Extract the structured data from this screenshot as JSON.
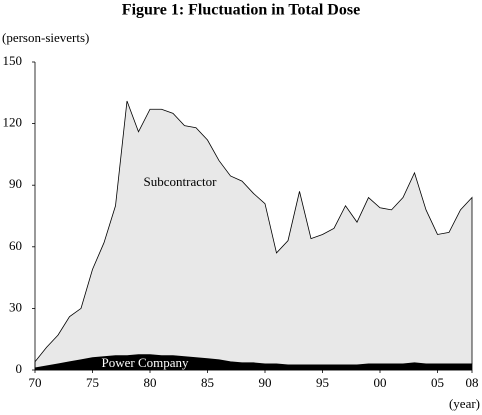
{
  "chart_data": {
    "type": "stacked_area",
    "title": "Figure 1: Fluctuation in Total Dose",
    "y_label": "(person-sieverts)",
    "x_label": "(year)",
    "x": [
      1970,
      1971,
      1972,
      1973,
      1974,
      1975,
      1976,
      1977,
      1978,
      1979,
      1980,
      1981,
      1982,
      1983,
      1984,
      1985,
      1986,
      1987,
      1988,
      1989,
      1990,
      1991,
      1992,
      1993,
      1994,
      1995,
      1996,
      1997,
      1998,
      1999,
      2000,
      2001,
      2002,
      2003,
      2004,
      2005,
      2006,
      2007,
      2008
    ],
    "series": [
      {
        "name": "Power Company",
        "color": "#000000",
        "values": [
          1,
          2,
          3,
          4,
          5,
          6,
          6.5,
          7,
          7,
          7.5,
          7.5,
          7,
          7,
          6.5,
          6,
          5.5,
          5,
          4,
          3.5,
          3.5,
          3,
          3,
          2.5,
          2.5,
          2.5,
          2.5,
          2.5,
          2.5,
          2.5,
          3,
          3,
          3,
          3,
          3.5,
          3,
          3,
          3,
          3,
          3
        ]
      },
      {
        "name": "Subcontractor",
        "color": "#e8e8e8",
        "values": [
          3,
          9,
          14,
          22,
          25,
          43,
          55.5,
          73,
          124,
          108.5,
          119.5,
          120,
          118,
          112.5,
          112,
          106.5,
          97,
          90.5,
          88.5,
          82.5,
          78,
          54,
          60.5,
          84.5,
          61.5,
          63.5,
          66.5,
          77.5,
          69.5,
          81,
          76,
          75,
          81,
          92.5,
          75,
          63,
          64,
          75,
          81
        ]
      }
    ],
    "xlim": [
      1970,
      2008
    ],
    "xticks": [
      {
        "value": 1970,
        "label": "70"
      },
      {
        "value": 1975,
        "label": "75"
      },
      {
        "value": 1980,
        "label": "80"
      },
      {
        "value": 1985,
        "label": "85"
      },
      {
        "value": 1990,
        "label": "90"
      },
      {
        "value": 1995,
        "label": "95"
      },
      {
        "value": 2000,
        "label": "00"
      },
      {
        "value": 2005,
        "label": "05"
      },
      {
        "value": 2008,
        "label": "08"
      }
    ],
    "ylim": [
      0,
      150
    ],
    "yticks": [
      0,
      30,
      60,
      90,
      120,
      150
    ],
    "grid": false
  }
}
